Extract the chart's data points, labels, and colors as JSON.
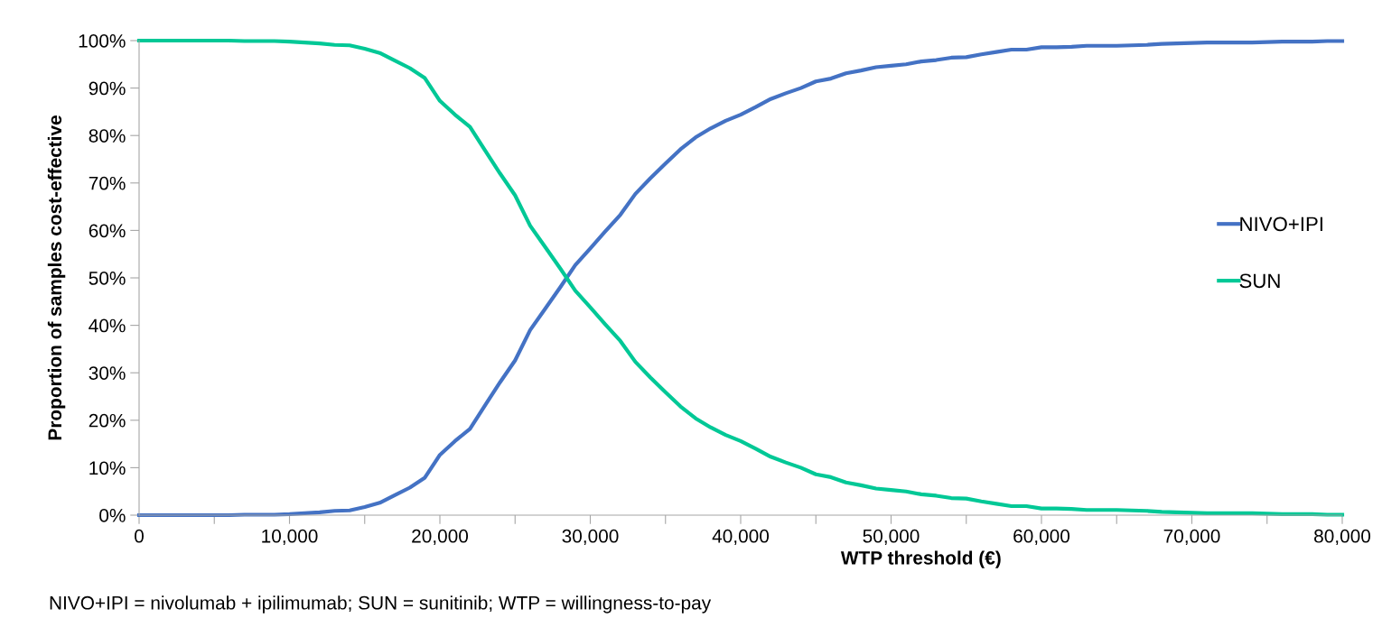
{
  "chart_data": {
    "type": "line",
    "xlabel": "WTP threshold (€)",
    "ylabel": "Proportion of samples cost-effective",
    "annotations": [
      "NIVO+IPI = nivolumab + ipilimumab; SUN = sunitinib; WTP = willingness-to-pay"
    ],
    "x": [
      0,
      1000,
      2000,
      3000,
      4000,
      5000,
      6000,
      7000,
      8000,
      9000,
      10000,
      11000,
      12000,
      13000,
      14000,
      15000,
      16000,
      17000,
      18000,
      19000,
      20000,
      21000,
      22000,
      23000,
      24000,
      25000,
      26000,
      27000,
      28000,
      29000,
      30000,
      31000,
      32000,
      33000,
      34000,
      35000,
      36000,
      37000,
      38000,
      39000,
      40000,
      41000,
      42000,
      43000,
      44000,
      45000,
      46000,
      47000,
      48000,
      49000,
      50000,
      51000,
      52000,
      53000,
      54000,
      55000,
      56000,
      57000,
      58000,
      59000,
      60000,
      61000,
      62000,
      63000,
      64000,
      65000,
      66000,
      67000,
      68000,
      69000,
      70000,
      71000,
      72000,
      73000,
      74000,
      75000,
      76000,
      77000,
      78000,
      79000,
      80000
    ],
    "series": [
      {
        "name": "NIVO+IPI",
        "color": "#4472c4",
        "values": [
          0,
          0,
          0,
          0,
          0,
          0,
          0,
          0.1,
          0.1,
          0.1,
          0.2,
          0.4,
          0.6,
          0.9,
          1.0,
          1.7,
          2.6,
          4.2,
          5.8,
          7.9,
          12.7,
          15.6,
          18.2,
          23.1,
          28,
          32.6,
          39,
          43.5,
          48,
          52.7,
          56.2,
          59.8,
          63.3,
          67.7,
          71,
          74.1,
          77.1,
          79.6,
          81.5,
          83.1,
          84.4,
          86,
          87.7,
          88.9,
          90,
          91.4,
          92,
          93.1,
          93.7,
          94.4,
          94.7,
          95,
          95.6,
          95.9,
          96.4,
          96.5,
          97.1,
          97.6,
          98.1,
          98.1,
          98.6,
          98.6,
          98.7,
          98.9,
          98.9,
          98.9,
          99,
          99.1,
          99.3,
          99.4,
          99.5,
          99.6,
          99.6,
          99.6,
          99.6,
          99.7,
          99.8,
          99.8,
          99.8,
          99.9,
          99.9
        ]
      },
      {
        "name": "SUN",
        "color": "#00c896",
        "values": [
          100,
          100,
          100,
          100,
          100,
          100,
          100,
          99.9,
          99.9,
          99.9,
          99.8,
          99.6,
          99.4,
          99.1,
          99.0,
          98.3,
          97.4,
          95.8,
          94.2,
          92.1,
          87.3,
          84.4,
          81.8,
          76.9,
          72,
          67.4,
          61,
          56.5,
          52,
          47.3,
          43.8,
          40.2,
          36.7,
          32.3,
          29,
          25.9,
          22.9,
          20.4,
          18.5,
          16.9,
          15.6,
          14,
          12.3,
          11.1,
          10,
          8.6,
          8,
          6.9,
          6.3,
          5.6,
          5.3,
          5,
          4.4,
          4.1,
          3.6,
          3.5,
          2.9,
          2.4,
          1.9,
          1.9,
          1.4,
          1.4,
          1.3,
          1.1,
          1.1,
          1.1,
          1,
          0.9,
          0.7,
          0.6,
          0.5,
          0.4,
          0.4,
          0.4,
          0.4,
          0.3,
          0.2,
          0.2,
          0.2,
          0.1,
          0.1
        ]
      }
    ],
    "xlim": [
      0,
      80000
    ],
    "xticks": [
      {
        "value": 0,
        "label": "0"
      },
      {
        "value": 5000,
        "label": null
      },
      {
        "value": 10000,
        "label": "10,000"
      },
      {
        "value": 15000,
        "label": null
      },
      {
        "value": 20000,
        "label": "20,000"
      },
      {
        "value": 25000,
        "label": null
      },
      {
        "value": 30000,
        "label": "30,000"
      },
      {
        "value": 35000,
        "label": null
      },
      {
        "value": 40000,
        "label": "40,000"
      },
      {
        "value": 45000,
        "label": null
      },
      {
        "value": 50000,
        "label": "50,000"
      },
      {
        "value": 55000,
        "label": null
      },
      {
        "value": 60000,
        "label": "60,000"
      },
      {
        "value": 65000,
        "label": null
      },
      {
        "value": 70000,
        "label": "70,000"
      },
      {
        "value": 75000,
        "label": null
      },
      {
        "value": 80000,
        "label": "80,000"
      }
    ],
    "ylim": [
      0,
      100
    ],
    "yticks": [
      {
        "value": 0,
        "label": "0%"
      },
      {
        "value": 10,
        "label": "10%"
      },
      {
        "value": 20,
        "label": "20%"
      },
      {
        "value": 30,
        "label": "30%"
      },
      {
        "value": 40,
        "label": "40%"
      },
      {
        "value": 50,
        "label": "50%"
      },
      {
        "value": 60,
        "label": "60%"
      },
      {
        "value": 70,
        "label": "70%"
      },
      {
        "value": 80,
        "label": "80%"
      },
      {
        "value": 90,
        "label": "90%"
      },
      {
        "value": 100,
        "label": "100%"
      }
    ],
    "grid": false,
    "legend": "right",
    "marker": "none",
    "line_style": "solid"
  }
}
